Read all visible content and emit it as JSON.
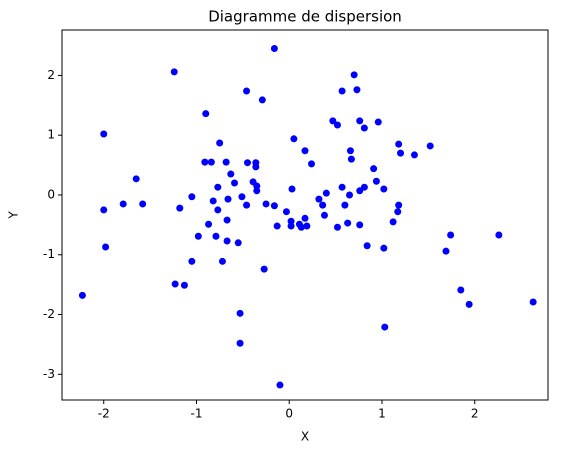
{
  "chart_data": {
    "type": "scatter",
    "title": "Diagramme de dispersion",
    "x_label": "X",
    "y_label": "Y",
    "color": "#0000ff",
    "xlim": [
      -2.45,
      2.79
    ],
    "ylim": [
      -3.43,
      2.76
    ],
    "xticks": [
      -2,
      -1,
      0,
      1,
      2
    ],
    "yticks": [
      -3,
      -2,
      -1,
      0,
      1,
      2
    ],
    "x": [
      -0.16,
      -1.24,
      0.7,
      -0.46,
      0.57,
      0.73,
      -0.29,
      -0.9,
      0.76,
      0.47,
      0.52,
      0.96,
      0.81,
      -2.0,
      0.05,
      1.18,
      1.52,
      0.17,
      0.66,
      1.2,
      1.35,
      -0.75,
      -0.91,
      -0.84,
      -0.68,
      -0.45,
      -0.36,
      -0.36,
      0.24,
      0.67,
      0.91,
      -0.63,
      -0.59,
      -1.65,
      -0.39,
      -0.35,
      -0.77,
      0.57,
      0.81,
      -0.35,
      0.03,
      1.02,
      0.94,
      0.4,
      0.65,
      0.76,
      -1.05,
      -0.51,
      -0.66,
      -0.82,
      0.32,
      -1.79,
      -1.58,
      -0.46,
      -0.25,
      -0.16,
      0.36,
      0.6,
      1.18,
      -1.18,
      -2.0,
      -0.77,
      -0.03,
      1.17,
      0.38,
      0.17,
      -0.67,
      -0.87,
      0.11,
      -0.13,
      0.02,
      0.13,
      0.19,
      0.63,
      0.76,
      0.52,
      1.12,
      0.02,
      -0.98,
      -0.79,
      1.74,
      2.26,
      -0.67,
      -0.55,
      0.84,
      1.02,
      -1.98,
      1.69,
      -1.05,
      -0.72,
      -0.27,
      -1.23,
      -1.13,
      -2.23,
      1.85,
      1.94,
      2.63,
      -0.53,
      1.03,
      -0.53,
      -0.1
    ],
    "y": [
      2.45,
      2.06,
      2.01,
      1.74,
      1.74,
      1.76,
      1.59,
      1.36,
      1.24,
      1.24,
      1.17,
      1.22,
      1.12,
      1.02,
      0.94,
      0.85,
      0.82,
      0.74,
      0.74,
      0.7,
      0.67,
      0.87,
      0.55,
      0.55,
      0.55,
      0.54,
      0.54,
      0.47,
      0.52,
      0.6,
      0.44,
      0.35,
      0.2,
      0.27,
      0.22,
      0.15,
      0.13,
      0.13,
      0.13,
      0.07,
      0.1,
      0.1,
      0.23,
      0.03,
      0.0,
      0.07,
      -0.03,
      -0.03,
      -0.07,
      -0.1,
      -0.07,
      -0.15,
      -0.15,
      -0.17,
      -0.15,
      -0.18,
      -0.17,
      -0.17,
      -0.17,
      -0.22,
      -0.25,
      -0.25,
      -0.28,
      -0.28,
      -0.34,
      -0.39,
      -0.42,
      -0.49,
      -0.49,
      -0.52,
      -0.52,
      -0.54,
      -0.52,
      -0.47,
      -0.5,
      -0.54,
      -0.45,
      -0.44,
      -0.69,
      -0.69,
      -0.67,
      -0.67,
      -0.77,
      -0.8,
      -0.85,
      -0.89,
      -0.87,
      -0.94,
      -1.11,
      -1.11,
      -1.24,
      -1.49,
      -1.51,
      -1.68,
      -1.59,
      -1.83,
      -1.79,
      -1.98,
      -2.21,
      -2.48,
      -3.18
    ]
  }
}
